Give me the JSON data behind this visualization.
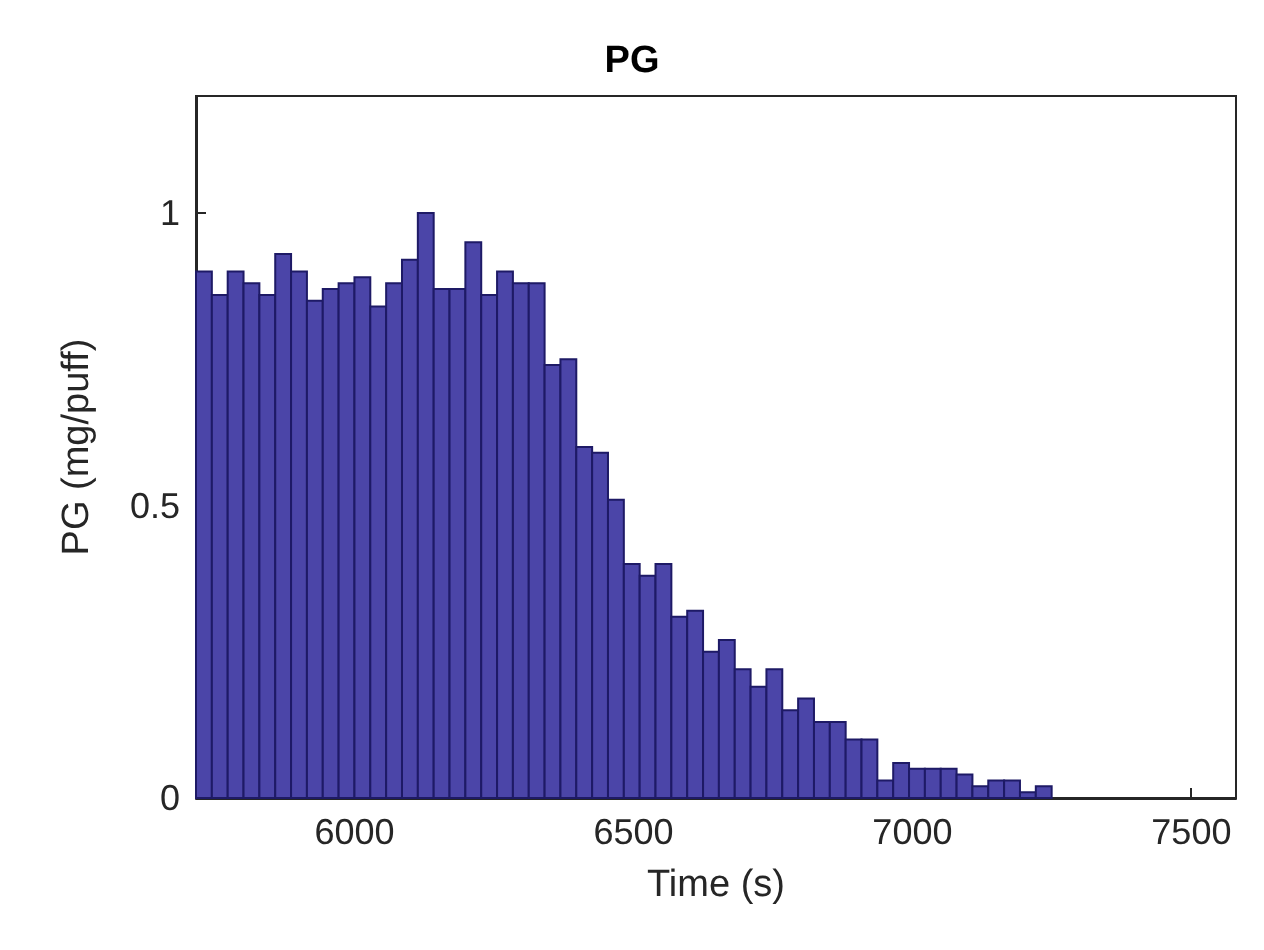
{
  "chart_data": {
    "type": "histogram",
    "title": "PG",
    "xlabel": "Time (s)",
    "ylabel": "PG (mg/puff)",
    "bins": [
      5716,
      5744.4,
      5772.8,
      5801.2,
      5829.6,
      5858,
      5886.4,
      5914.8,
      5943.2,
      5971.6,
      6000,
      6028.4,
      6056.8,
      6085.2,
      6113.6,
      6142,
      6170.4,
      6198.8,
      6227.2,
      6255.6,
      6284,
      6312.4,
      6340.8,
      6369.2,
      6397.6,
      6426,
      6454.4,
      6482.8,
      6511.2,
      6539.6,
      6568,
      6596.4,
      6624.8,
      6653.2,
      6681.6,
      6710,
      6738.4,
      6766.8,
      6795.2,
      6823.6,
      6852,
      6880.4,
      6908.8,
      6937.2,
      6965.6,
      6994,
      7022.4,
      7050.8,
      7079.2,
      7107.6,
      7136,
      7164.4,
      7192.8,
      7221.2,
      7249.6
    ],
    "values": [
      0.9,
      0.86,
      0.9,
      0.88,
      0.86,
      0.93,
      0.9,
      0.85,
      0.87,
      0.88,
      0.89,
      0.84,
      0.88,
      0.92,
      1.0,
      0.87,
      0.87,
      0.95,
      0.86,
      0.9,
      0.88,
      0.88,
      0.74,
      0.75,
      0.6,
      0.59,
      0.51,
      0.4,
      0.38,
      0.4,
      0.31,
      0.32,
      0.25,
      0.27,
      0.22,
      0.19,
      0.22,
      0.15,
      0.17,
      0.13,
      0.13,
      0.1,
      0.1,
      0.03,
      0.06,
      0.05,
      0.05,
      0.05,
      0.04,
      0.02,
      0.03,
      0.03,
      0.01,
      0.02
    ],
    "color": "#4b45a8",
    "xlim": [
      5716,
      7580
    ],
    "xticks": [
      6000,
      6500,
      7000,
      7500
    ],
    "ylim": [
      0,
      1.2
    ],
    "yticks": [
      0,
      0.5,
      1
    ],
    "grid": false
  }
}
